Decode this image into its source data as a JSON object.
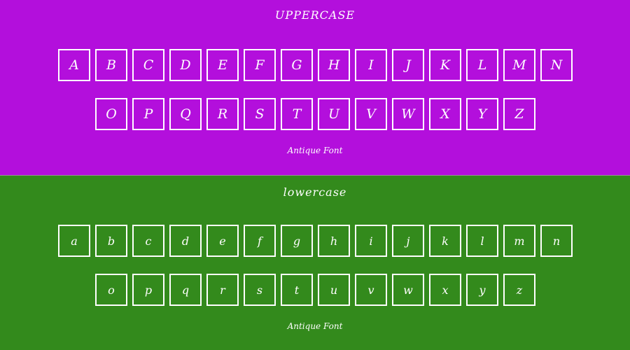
{
  "upper": {
    "title": "UPPERCASE",
    "row1": [
      "A",
      "B",
      "C",
      "D",
      "E",
      "F",
      "G",
      "H",
      "I",
      "J",
      "K",
      "L",
      "M",
      "N"
    ],
    "row2": [
      "O",
      "P",
      "Q",
      "R",
      "S",
      "T",
      "U",
      "V",
      "W",
      "X",
      "Y",
      "Z"
    ],
    "footer": "Antique Font"
  },
  "lower": {
    "title": "lowercase",
    "row1": [
      "a",
      "b",
      "c",
      "d",
      "e",
      "f",
      "g",
      "h",
      "i",
      "j",
      "k",
      "l",
      "m",
      "n"
    ],
    "row2": [
      "o",
      "p",
      "q",
      "r",
      "s",
      "t",
      "u",
      "v",
      "w",
      "x",
      "y",
      "z"
    ],
    "footer": "Antique Font"
  },
  "colors": {
    "upper_bg": "#b30fdc",
    "lower_bg": "#338a1c",
    "box_border": "#ffffff"
  }
}
